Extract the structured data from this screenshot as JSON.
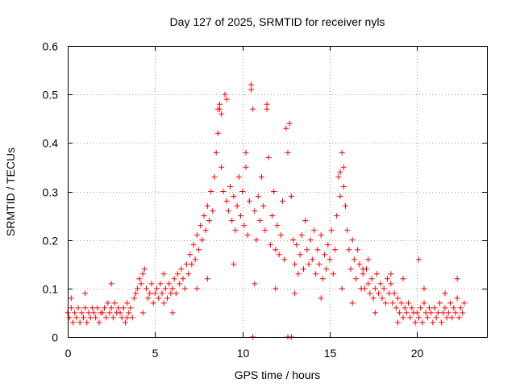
{
  "chart_data": {
    "type": "scatter",
    "title": "Day 127 of 2025, SRMTID for receiver nyls",
    "xlabel": "GPS time / hours",
    "ylabel": "SRMTID / TECUs",
    "xlim": [
      0,
      24
    ],
    "ylim": [
      0,
      0.6
    ],
    "xticks": [
      "0",
      "5",
      "10",
      "15",
      "20"
    ],
    "xtick_values": [
      0,
      5,
      10,
      15,
      20
    ],
    "yticks": [
      "0",
      "0.1",
      "0.2",
      "0.3",
      "0.4",
      "0.5",
      "0.6"
    ],
    "ytick_values": [
      0,
      0.1,
      0.2,
      0.3,
      0.4,
      0.5,
      0.6
    ],
    "grid": true,
    "marker": "+",
    "color": "#ff0000",
    "series": [
      {
        "name": "SRMTID",
        "points": [
          [
            0.0,
            0.05
          ],
          [
            0.1,
            0.04
          ],
          [
            0.2,
            0.06
          ],
          [
            0.3,
            0.03
          ],
          [
            0.4,
            0.05
          ],
          [
            0.5,
            0.04
          ],
          [
            0.6,
            0.06
          ],
          [
            0.7,
            0.03
          ],
          [
            0.8,
            0.05
          ],
          [
            0.9,
            0.04
          ],
          [
            1.0,
            0.06
          ],
          [
            1.1,
            0.03
          ],
          [
            1.2,
            0.05
          ],
          [
            1.3,
            0.04
          ],
          [
            1.4,
            0.06
          ],
          [
            1.5,
            0.05
          ],
          [
            1.6,
            0.04
          ],
          [
            1.7,
            0.06
          ],
          [
            1.8,
            0.03
          ],
          [
            1.9,
            0.05
          ],
          [
            2.0,
            0.05
          ],
          [
            2.1,
            0.06
          ],
          [
            2.2,
            0.04
          ],
          [
            2.3,
            0.07
          ],
          [
            2.4,
            0.05
          ],
          [
            2.5,
            0.06
          ],
          [
            2.6,
            0.04
          ],
          [
            2.7,
            0.07
          ],
          [
            2.8,
            0.05
          ],
          [
            2.9,
            0.06
          ],
          [
            3.0,
            0.05
          ],
          [
            3.1,
            0.04
          ],
          [
            3.2,
            0.06
          ],
          [
            3.3,
            0.03
          ],
          [
            3.4,
            0.07
          ],
          [
            3.5,
            0.05
          ],
          [
            3.6,
            0.06
          ],
          [
            3.7,
            0.04
          ],
          [
            3.8,
            0.08
          ],
          [
            3.9,
            0.09
          ],
          [
            4.0,
            0.1
          ],
          [
            4.1,
            0.12
          ],
          [
            4.2,
            0.11
          ],
          [
            4.3,
            0.13
          ],
          [
            4.4,
            0.14
          ],
          [
            4.5,
            0.1
          ],
          [
            4.6,
            0.08
          ],
          [
            4.7,
            0.09
          ],
          [
            4.8,
            0.11
          ],
          [
            4.9,
            0.07
          ],
          [
            5.0,
            0.09
          ],
          [
            5.1,
            0.1
          ],
          [
            5.2,
            0.08
          ],
          [
            5.3,
            0.11
          ],
          [
            5.4,
            0.09
          ],
          [
            5.5,
            0.07
          ],
          [
            5.6,
            0.1
          ],
          [
            5.7,
            0.08
          ],
          [
            5.8,
            0.11
          ],
          [
            5.9,
            0.09
          ],
          [
            6.0,
            0.1
          ],
          [
            6.1,
            0.12
          ],
          [
            6.2,
            0.09
          ],
          [
            6.3,
            0.13
          ],
          [
            6.4,
            0.11
          ],
          [
            6.5,
            0.14
          ],
          [
            6.6,
            0.12
          ],
          [
            6.7,
            0.1
          ],
          [
            6.8,
            0.15
          ],
          [
            6.9,
            0.13
          ],
          [
            7.0,
            0.17
          ],
          [
            7.1,
            0.15
          ],
          [
            7.2,
            0.19
          ],
          [
            7.3,
            0.16
          ],
          [
            7.4,
            0.21
          ],
          [
            7.5,
            0.18
          ],
          [
            7.6,
            0.23
          ],
          [
            7.7,
            0.2
          ],
          [
            7.8,
            0.25
          ],
          [
            7.9,
            0.22
          ],
          [
            8.0,
            0.27
          ],
          [
            8.1,
            0.24
          ],
          [
            8.2,
            0.3
          ],
          [
            8.3,
            0.26
          ],
          [
            8.4,
            0.33
          ],
          [
            8.5,
            0.38
          ],
          [
            8.6,
            0.42
          ],
          [
            8.7,
            0.48
          ],
          [
            8.8,
            0.35
          ],
          [
            8.9,
            0.3
          ],
          [
            9.0,
            0.5
          ],
          [
            9.1,
            0.28
          ],
          [
            9.2,
            0.26
          ],
          [
            9.3,
            0.31
          ],
          [
            9.4,
            0.24
          ],
          [
            9.5,
            0.29
          ],
          [
            9.6,
            0.22
          ],
          [
            9.7,
            0.27
          ],
          [
            9.8,
            0.33
          ],
          [
            9.9,
            0.25
          ],
          [
            10.0,
            0.3
          ],
          [
            10.1,
            0.23
          ],
          [
            10.2,
            0.35
          ],
          [
            10.3,
            0.21
          ],
          [
            10.4,
            0.28
          ],
          [
            10.5,
            0.52
          ],
          [
            10.6,
            0.47
          ],
          [
            10.7,
            0.26
          ],
          [
            10.8,
            0.2
          ],
          [
            10.9,
            0.29
          ],
          [
            11.0,
            0.24
          ],
          [
            11.1,
            0.33
          ],
          [
            11.2,
            0.27
          ],
          [
            11.3,
            0.22
          ],
          [
            11.4,
            0.48
          ],
          [
            11.5,
            0.37
          ],
          [
            11.6,
            0.19
          ],
          [
            11.7,
            0.25
          ],
          [
            11.8,
            0.3
          ],
          [
            11.9,
            0.18
          ],
          [
            12.0,
            0.23
          ],
          [
            12.1,
            0.17
          ],
          [
            12.2,
            0.21
          ],
          [
            12.3,
            0.28
          ],
          [
            12.4,
            0.16
          ],
          [
            12.5,
            0.43
          ],
          [
            12.6,
            0.38
          ],
          [
            12.7,
            0.44
          ],
          [
            12.8,
            0.29
          ],
          [
            12.9,
            0.2
          ],
          [
            13.0,
            0.15
          ],
          [
            13.1,
            0.19
          ],
          [
            13.2,
            0.13
          ],
          [
            13.3,
            0.17
          ],
          [
            13.4,
            0.21
          ],
          [
            13.5,
            0.14
          ],
          [
            13.6,
            0.24
          ],
          [
            13.7,
            0.18
          ],
          [
            13.8,
            0.15
          ],
          [
            13.9,
            0.2
          ],
          [
            14.0,
            0.16
          ],
          [
            14.1,
            0.22
          ],
          [
            14.2,
            0.13
          ],
          [
            14.3,
            0.18
          ],
          [
            14.4,
            0.15
          ],
          [
            14.5,
            0.21
          ],
          [
            14.6,
            0.12
          ],
          [
            14.7,
            0.17
          ],
          [
            14.8,
            0.14
          ],
          [
            14.9,
            0.19
          ],
          [
            15.0,
            0.16
          ],
          [
            15.1,
            0.22
          ],
          [
            15.2,
            0.13
          ],
          [
            15.3,
            0.18
          ],
          [
            15.4,
            0.25
          ],
          [
            15.5,
            0.33
          ],
          [
            15.6,
            0.29
          ],
          [
            15.7,
            0.38
          ],
          [
            15.8,
            0.31
          ],
          [
            15.9,
            0.27
          ],
          [
            16.0,
            0.22
          ],
          [
            16.1,
            0.18
          ],
          [
            16.2,
            0.14
          ],
          [
            16.3,
            0.2
          ],
          [
            16.4,
            0.16
          ],
          [
            16.5,
            0.12
          ],
          [
            16.6,
            0.18
          ],
          [
            16.7,
            0.15
          ],
          [
            16.8,
            0.1
          ],
          [
            16.9,
            0.13
          ],
          [
            17.0,
            0.1
          ],
          [
            17.1,
            0.14
          ],
          [
            17.2,
            0.11
          ],
          [
            17.3,
            0.09
          ],
          [
            17.4,
            0.12
          ],
          [
            17.5,
            0.08
          ],
          [
            17.6,
            0.1
          ],
          [
            17.7,
            0.13
          ],
          [
            17.8,
            0.09
          ],
          [
            17.9,
            0.11
          ],
          [
            18.0,
            0.08
          ],
          [
            18.1,
            0.1
          ],
          [
            18.2,
            0.07
          ],
          [
            18.3,
            0.12
          ],
          [
            18.4,
            0.09
          ],
          [
            18.5,
            0.11
          ],
          [
            18.6,
            0.07
          ],
          [
            18.7,
            0.09
          ],
          [
            18.8,
            0.06
          ],
          [
            18.9,
            0.08
          ],
          [
            19.0,
            0.05
          ],
          [
            19.1,
            0.07
          ],
          [
            19.2,
            0.04
          ],
          [
            19.3,
            0.06
          ],
          [
            19.4,
            0.05
          ],
          [
            19.5,
            0.07
          ],
          [
            19.6,
            0.04
          ],
          [
            19.7,
            0.06
          ],
          [
            19.8,
            0.05
          ],
          [
            19.9,
            0.03
          ],
          [
            20.0,
            0.05
          ],
          [
            20.1,
            0.04
          ],
          [
            20.2,
            0.06
          ],
          [
            20.3,
            0.03
          ],
          [
            20.4,
            0.07
          ],
          [
            20.5,
            0.05
          ],
          [
            20.6,
            0.04
          ],
          [
            20.7,
            0.06
          ],
          [
            20.8,
            0.05
          ],
          [
            20.9,
            0.03
          ],
          [
            21.0,
            0.06
          ],
          [
            21.1,
            0.04
          ],
          [
            21.2,
            0.05
          ],
          [
            21.3,
            0.07
          ],
          [
            21.4,
            0.03
          ],
          [
            21.5,
            0.05
          ],
          [
            21.6,
            0.06
          ],
          [
            21.7,
            0.04
          ],
          [
            21.8,
            0.05
          ],
          [
            21.9,
            0.07
          ],
          [
            22.0,
            0.04
          ],
          [
            22.1,
            0.06
          ],
          [
            22.2,
            0.05
          ],
          [
            22.3,
            0.08
          ],
          [
            22.4,
            0.04
          ],
          [
            22.5,
            0.06
          ],
          [
            22.6,
            0.05
          ],
          [
            22.7,
            0.07
          ],
          [
            8.6,
            0.47
          ],
          [
            8.7,
            0.47
          ],
          [
            8.8,
            0.46
          ],
          [
            9.1,
            0.49
          ],
          [
            10.5,
            0.51
          ],
          [
            11.4,
            0.47
          ],
          [
            10.2,
            0.38
          ],
          [
            15.6,
            0.34
          ],
          [
            15.8,
            0.35
          ],
          [
            20.1,
            0.16
          ],
          [
            22.3,
            0.12
          ],
          [
            21.6,
            0.09
          ],
          [
            20.4,
            0.1
          ],
          [
            19.2,
            0.12
          ],
          [
            18.5,
            0.13
          ],
          [
            17.2,
            0.16
          ],
          [
            16.9,
            0.14
          ],
          [
            0.2,
            0.08
          ],
          [
            1.0,
            0.09
          ],
          [
            2.5,
            0.11
          ],
          [
            3.4,
            0.04
          ],
          [
            4.3,
            0.05
          ],
          [
            5.5,
            0.13
          ],
          [
            6.0,
            0.05
          ],
          [
            7.4,
            0.1
          ],
          [
            8.0,
            0.12
          ],
          [
            9.5,
            0.15
          ],
          [
            10.7,
            0.11
          ],
          [
            11.9,
            0.1
          ],
          [
            13.0,
            0.09
          ],
          [
            14.5,
            0.08
          ],
          [
            15.7,
            0.1
          ],
          [
            16.3,
            0.07
          ],
          [
            17.6,
            0.05
          ],
          [
            18.9,
            0.03
          ],
          [
            10.6,
            0.0
          ],
          [
            12.6,
            0.0
          ],
          [
            12.8,
            0.0
          ]
        ]
      }
    ]
  }
}
